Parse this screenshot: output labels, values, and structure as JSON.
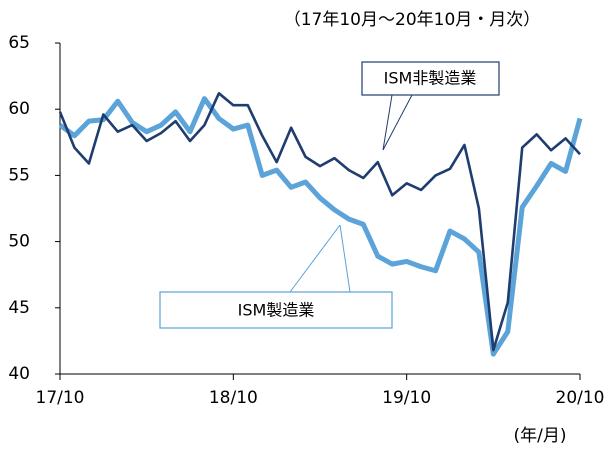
{
  "chart_data": {
    "type": "line",
    "subtitle": "（17年10月～20年10月・月次）",
    "x_label": "(年/月)",
    "categories": [
      "17/10",
      null,
      null,
      null,
      null,
      null,
      null,
      null,
      null,
      null,
      null,
      null,
      "18/10",
      null,
      null,
      null,
      null,
      null,
      null,
      null,
      null,
      null,
      null,
      null,
      "19/10",
      null,
      null,
      null,
      null,
      null,
      null,
      null,
      null,
      null,
      null,
      null,
      "20/10"
    ],
    "series": [
      {
        "name": "ISM製造業",
        "color": "#5ba3d9",
        "values": [
          58.8,
          58.0,
          59.1,
          59.2,
          60.6,
          59.0,
          58.3,
          58.8,
          59.8,
          58.3,
          60.8,
          59.3,
          58.5,
          58.8,
          55.0,
          55.4,
          54.1,
          54.5,
          53.3,
          52.4,
          51.7,
          51.3,
          48.9,
          48.3,
          48.5,
          48.1,
          47.8,
          50.8,
          50.2,
          49.2,
          41.5,
          43.2,
          52.6,
          54.2,
          55.9,
          55.3,
          59.3
        ]
      },
      {
        "name": "ISM非製造業",
        "color": "#1f3d6e",
        "values": [
          59.8,
          57.1,
          55.9,
          59.6,
          58.3,
          58.8,
          57.6,
          58.2,
          59.1,
          57.6,
          58.8,
          61.2,
          60.3,
          60.3,
          58.0,
          56.0,
          58.6,
          56.4,
          55.7,
          56.3,
          55.4,
          54.8,
          56.0,
          53.5,
          54.4,
          53.9,
          55.0,
          55.5,
          57.3,
          52.5,
          41.8,
          45.4,
          57.1,
          58.1,
          56.9,
          57.8,
          56.6
        ]
      }
    ],
    "ylim": [
      40,
      65
    ],
    "yticks": [
      40,
      45,
      50,
      55,
      60,
      65
    ],
    "grid": false
  }
}
